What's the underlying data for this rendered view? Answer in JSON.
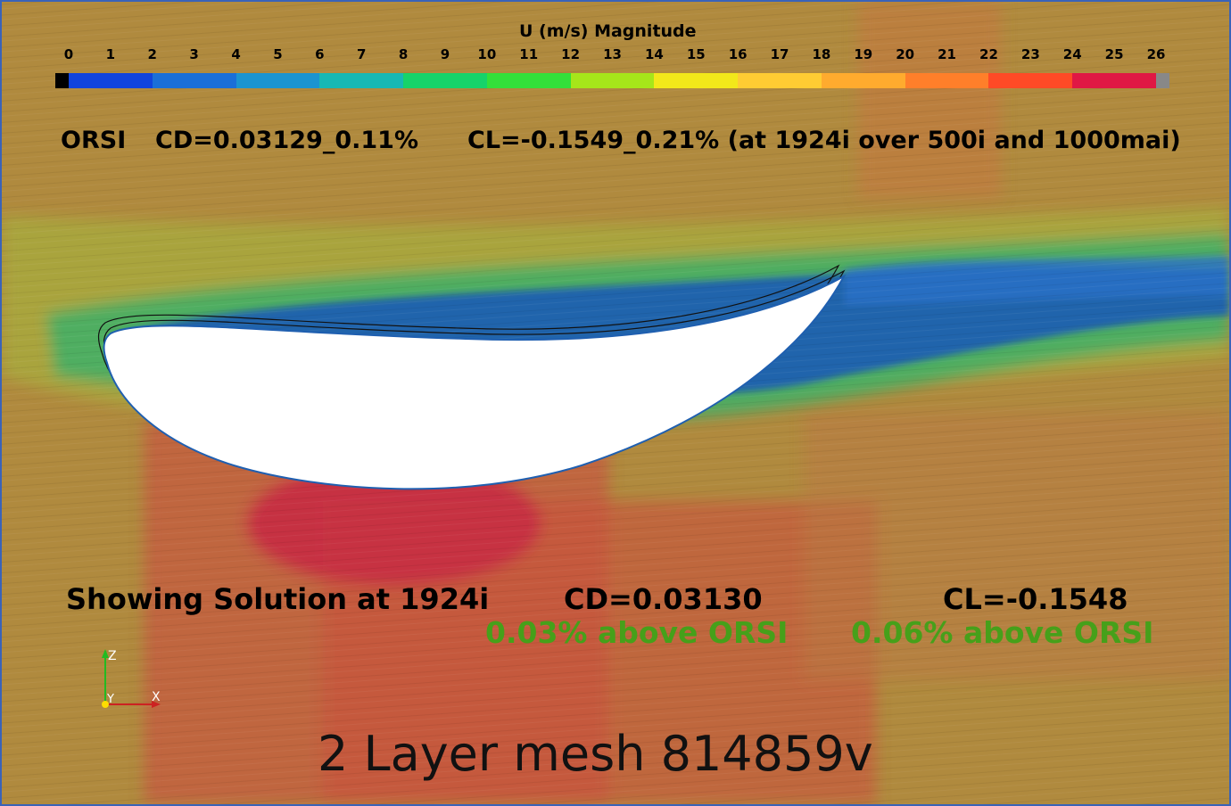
{
  "colorbar": {
    "title": "U (m/s) Magnitude",
    "ticks": [
      "0",
      "1",
      "2",
      "3",
      "4",
      "5",
      "6",
      "7",
      "8",
      "9",
      "10",
      "11",
      "12",
      "13",
      "14",
      "15",
      "16",
      "17",
      "18",
      "19",
      "20",
      "21",
      "22",
      "23",
      "24",
      "25",
      "26"
    ],
    "range": [
      0,
      26
    ],
    "colors": [
      "#1144dd",
      "#1a6fd8",
      "#1b94d0",
      "#17b8b4",
      "#16d36a",
      "#33e03a",
      "#a6e61a",
      "#f2e81a",
      "#ffcc33",
      "#ffab2e",
      "#ff7f2a",
      "#ff4a26",
      "#e01844"
    ],
    "below_range_color": "#000000",
    "above_range_color": "#888888"
  },
  "orsi": {
    "label": "ORSI",
    "cd": "CD=0.03129_0.11%",
    "cl": "CL=-0.1549_0.21%  (at 1924i over 500i and 1000mai)"
  },
  "solution": {
    "label": "Showing Solution at 1924i",
    "cd": "CD=0.03130",
    "cl": "CL=-0.1548",
    "cd_diff": "0.03% above ORSI",
    "cl_diff": "0.06% above ORSI"
  },
  "mesh": {
    "label": "2 Layer mesh 814859v"
  },
  "axes": {
    "z": "Z",
    "y": "Y",
    "x": "X"
  },
  "colors": {
    "freestream": "#b08a3e",
    "high_speed": "#c04a40",
    "wake_low": "#1f5fb0",
    "text_highlight": "#46a01a",
    "frame": "#3a63b8"
  }
}
